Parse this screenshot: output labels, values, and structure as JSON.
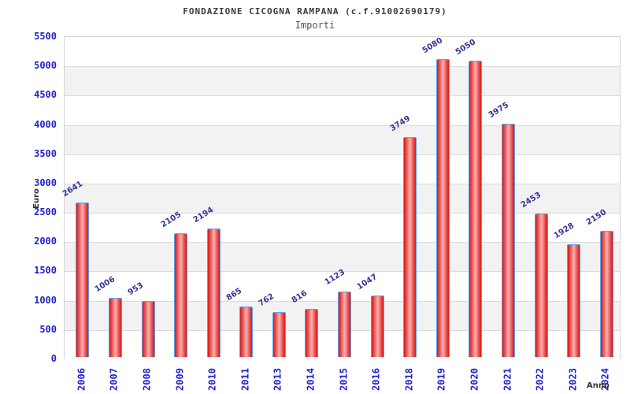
{
  "header": {
    "title": "FONDAZIONE CICOGNA RAMPANA (c.f.91002690179)",
    "subtitle": "Importi"
  },
  "chart_data": {
    "type": "bar",
    "title": "FONDAZIONE CICOGNA RAMPANA (c.f.91002690179)",
    "subtitle": "Importi",
    "xlabel": "Anno",
    "ylabel": "Euro",
    "categories": [
      "2006",
      "2007",
      "2008",
      "2009",
      "2010",
      "2011",
      "2013",
      "2014",
      "2015",
      "2016",
      "2018",
      "2019",
      "2020",
      "2021",
      "2022",
      "2023",
      "2024"
    ],
    "values": [
      2641,
      1006,
      953,
      2105,
      2194,
      865,
      762,
      816,
      1123,
      1047,
      3749,
      5080,
      5050,
      3975,
      2453,
      1928,
      2150
    ],
    "ylim": [
      0,
      5500
    ],
    "ytick_step": 500,
    "grid": "horizontal-bands",
    "legend": "none",
    "colors": {
      "bar_fill_edge": "#cf1d1d",
      "bar_fill_center": "#f7a8a8",
      "bar_border": "#5ca0e6",
      "tick_label": "#2222cc",
      "value_label": "#333399",
      "band_gray": "#f2f2f2",
      "band_white": "#ffffff",
      "grid_line": "#dcdcdc",
      "axis_line": "#cccccc",
      "title_text": "#3a3a3a",
      "subtitle_text": "#555555"
    }
  }
}
